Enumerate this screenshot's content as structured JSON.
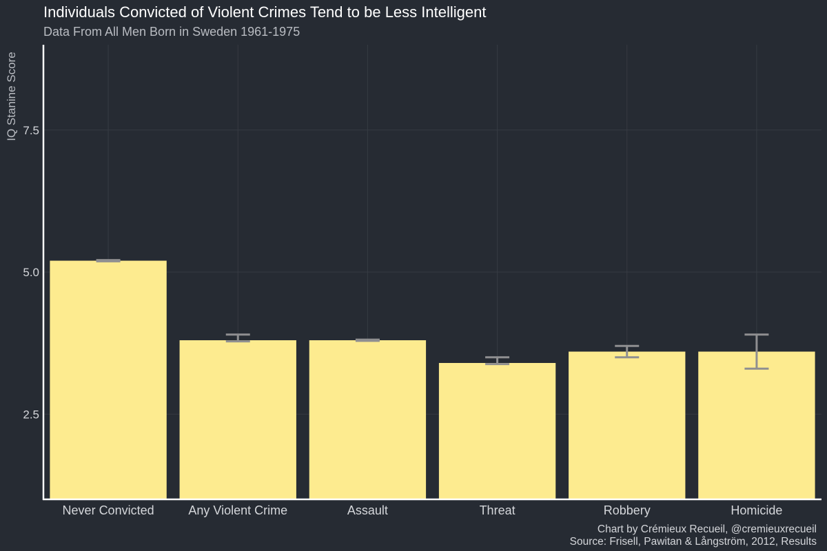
{
  "chart_data": {
    "type": "bar",
    "title": "Individuals Convicted of Violent Crimes Tend to be Less Intelligent",
    "subtitle": "Data From All Men Born in Sweden 1961-1975",
    "xlabel": "",
    "ylabel": "IQ Stanine Score",
    "categories": [
      "Never Convicted",
      "Any Violent Crime",
      "Assault",
      "Threat",
      "Robbery",
      "Homicide"
    ],
    "values": [
      5.2,
      3.8,
      3.8,
      3.4,
      3.6,
      3.6
    ],
    "error_low": [
      5.19,
      3.78,
      3.79,
      3.38,
      3.5,
      3.3
    ],
    "error_high": [
      5.21,
      3.9,
      3.81,
      3.5,
      3.7,
      3.9
    ],
    "ylim": [
      1.0,
      9.0
    ],
    "yticks": [
      2.5,
      5.0,
      7.5
    ],
    "ytick_labels": [
      "2.5",
      "5.0",
      "7.5"
    ],
    "grid": true,
    "legend": "none",
    "colors": {
      "background": "#262b33",
      "bar": "#fdeb8f",
      "errorbar": "#8f8f91",
      "gridline": "#363b43",
      "axis": "#ffffff",
      "title": "#ffffff",
      "subtitle": "#b9bcc2",
      "tick_label": "#d4d6da"
    }
  },
  "caption": {
    "line1": "Chart by Crémieux Recueil, @cremieuxrecueil",
    "line2": "Source: Frisell, Pawitan & Långström, 2012, Results"
  }
}
